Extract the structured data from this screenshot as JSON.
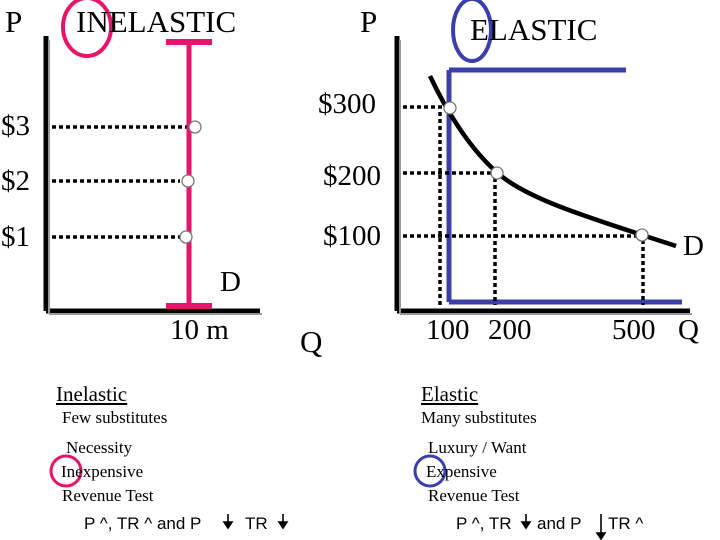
{
  "inelastic_graph": {
    "axis_p": "P",
    "title": "INELASTIC",
    "price_1": "$1",
    "price_2": "$2",
    "price_3": "$3",
    "demand_label": "D",
    "quantity_value": "10 m",
    "demand_color": "#e8136b"
  },
  "elastic_graph": {
    "axis_p": "P",
    "axis_q": "Q",
    "title": "ELASTIC",
    "price_1": "$100",
    "price_2": "$200",
    "price_3": "$300",
    "demand_label": "D",
    "quantity_1": "100",
    "quantity_2": "200",
    "quantity_3": "500",
    "quantity_axis_end": "Q",
    "revenue_box_color": "#3b3fa8"
  },
  "inelastic_notes": {
    "heading": "Inelastic",
    "line_1": "Few substitutes",
    "line_2": "Necessity",
    "line_3": "Inexpensive",
    "line_4": "Revenue Test",
    "rule_part_1": "P ^, TR ^ and P",
    "rule_part_2": "TR"
  },
  "elastic_notes": {
    "heading": "Elastic",
    "line_1": "Many substitutes",
    "line_2": "Luxury / Want",
    "line_3": "Expensive",
    "line_4": "Revenue Test",
    "rule_part_1": "P ^, TR",
    "rule_part_2": "and P",
    "rule_part_3": "TR ^"
  },
  "highlight_colors": {
    "inelastic": "#e8136b",
    "elastic": "#3b3fa8"
  }
}
